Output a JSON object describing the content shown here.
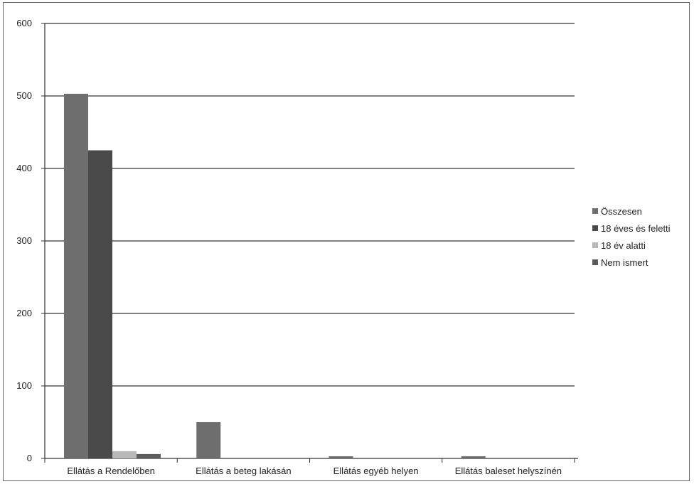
{
  "chart_data": {
    "type": "bar",
    "title": "",
    "xlabel": "",
    "ylabel": "",
    "ylim": [
      0,
      600
    ],
    "yticks": [
      0,
      100,
      200,
      300,
      400,
      500,
      600
    ],
    "grid": true,
    "legend_position": "right",
    "categories": [
      "Ellátás a Rendelőben",
      "Ellátás a beteg lakásán",
      "Ellátás egyéb helyen",
      "Ellátás baleset helyszínén"
    ],
    "series": [
      {
        "name": "Összesen",
        "color": "#6e6e6e",
        "values": [
          503,
          50,
          3,
          3
        ]
      },
      {
        "name": "18 éves és feletti",
        "color": "#4a4a4a",
        "values": [
          425,
          0,
          0,
          0
        ]
      },
      {
        "name": "18 év alatti",
        "color": "#b8b8b8",
        "values": [
          10,
          0,
          0,
          0
        ]
      },
      {
        "name": "Nem ismert",
        "color": "#5c5c5c",
        "values": [
          6,
          0,
          0,
          0
        ]
      }
    ]
  }
}
